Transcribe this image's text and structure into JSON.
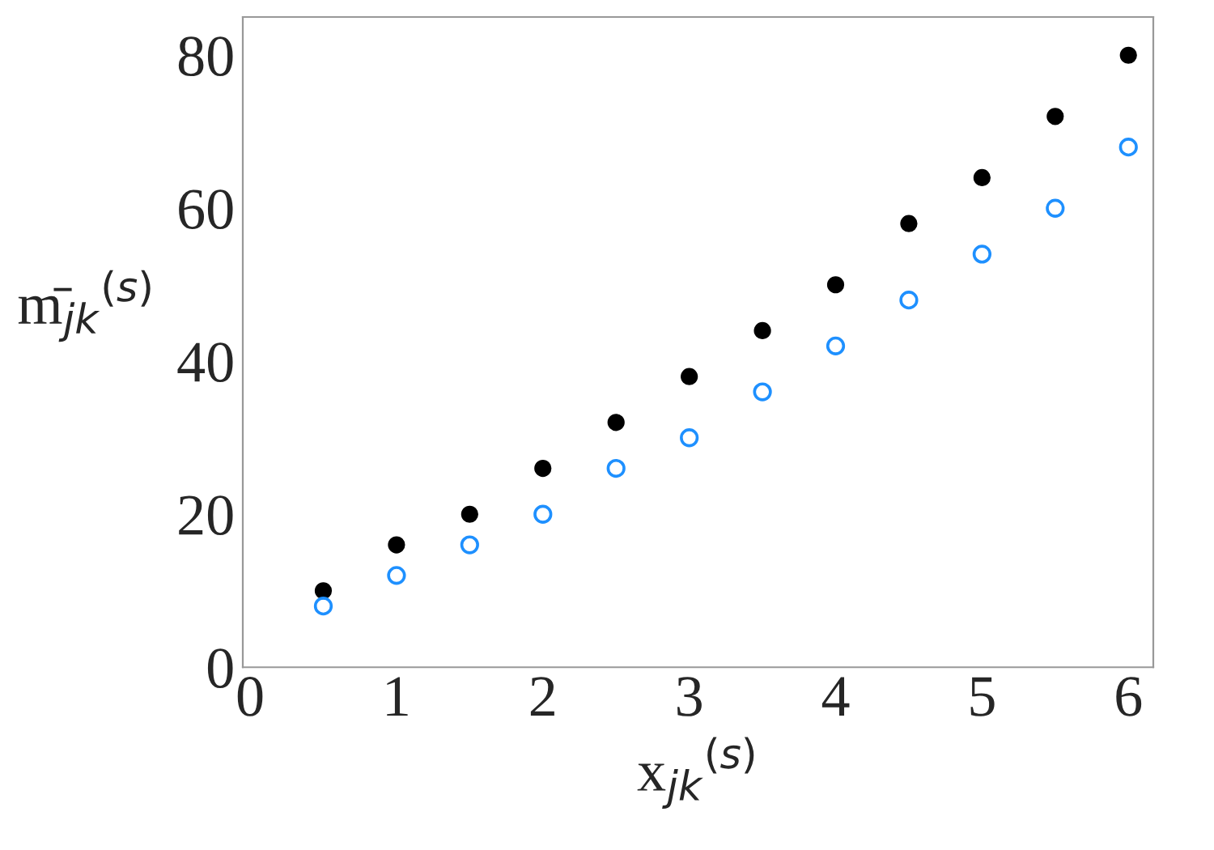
{
  "chart_data": {
    "type": "scatter",
    "xlabel": "x$_{jk}$$^{(s)}$",
    "ylabel": "m̄$_{jk}$$^{(s)}$",
    "x": [
      0.5,
      1,
      1.5,
      2,
      2.5,
      3,
      3.5,
      4,
      4.5,
      5,
      5.5,
      6
    ],
    "series": [
      {
        "color": "#000000",
        "values": [
          10,
          16,
          20,
          26,
          32,
          38,
          44,
          50,
          58,
          64,
          72,
          80
        ]
      },
      {
        "color": "#1e90ff",
        "values": [
          8,
          12,
          16,
          20,
          26,
          30,
          36,
          42,
          48,
          54,
          60,
          68
        ]
      }
    ],
    "xlim": [
      -0.05,
      6.17
    ],
    "ylim": [
      0,
      85
    ],
    "xticks": [
      0,
      1,
      2,
      3,
      4,
      5,
      6
    ],
    "yticks": [
      0,
      20,
      40,
      60,
      80
    ],
    "marker": "circle",
    "grid": false,
    "legend": false
  }
}
